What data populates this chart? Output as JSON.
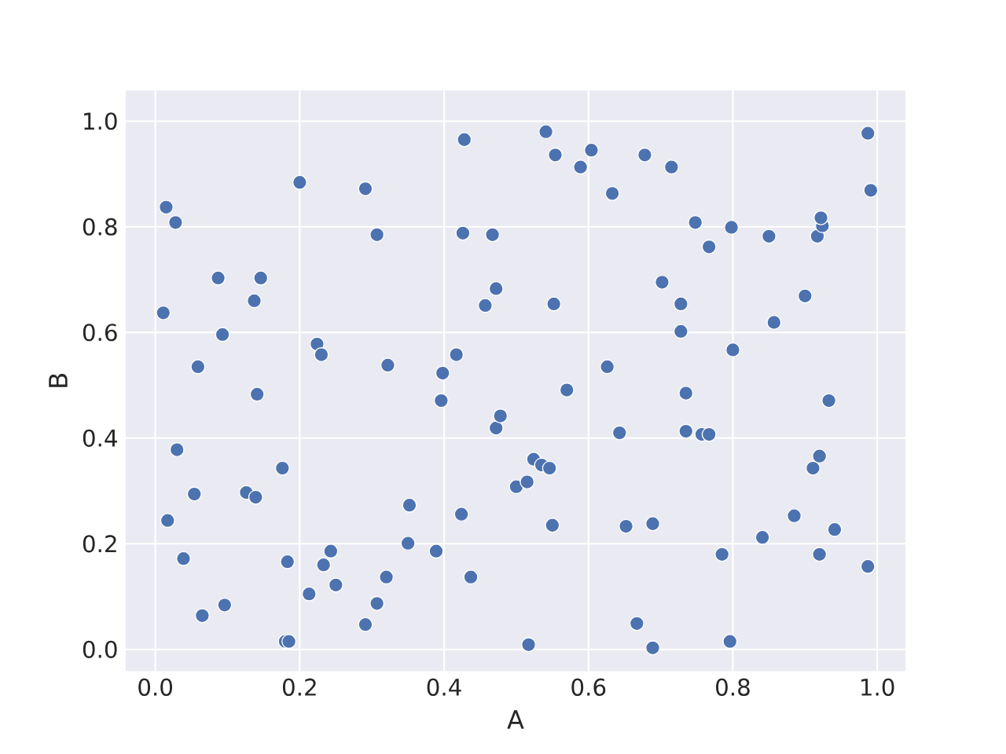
{
  "chart_data": {
    "type": "scatter",
    "xlabel": "A",
    "ylabel": "B",
    "x": [
      0.015,
      0.028,
      0.011,
      0.059,
      0.087,
      0.093,
      0.137,
      0.146,
      0.141,
      0.2,
      0.291,
      0.307,
      0.224,
      0.23,
      0.322,
      0.017,
      0.03,
      0.039,
      0.054,
      0.065,
      0.096,
      0.126,
      0.139,
      0.176,
      0.183,
      0.18,
      0.185,
      0.213,
      0.233,
      0.243,
      0.25,
      0.291,
      0.307,
      0.32,
      0.352,
      0.35,
      0.389,
      0.398,
      0.396,
      0.417,
      0.428,
      0.426,
      0.424,
      0.437,
      0.467,
      0.472,
      0.457,
      0.472,
      0.478,
      0.5,
      0.515,
      0.517,
      0.524,
      0.535,
      0.546,
      0.541,
      0.554,
      0.552,
      0.55,
      0.57,
      0.589,
      0.604,
      0.633,
      0.626,
      0.643,
      0.652,
      0.667,
      0.678,
      0.689,
      0.689,
      0.702,
      0.715,
      0.728,
      0.728,
      0.735,
      0.735,
      0.748,
      0.757,
      0.767,
      0.767,
      0.785,
      0.796,
      0.798,
      0.8,
      0.841,
      0.85,
      0.857,
      0.885,
      0.9,
      0.911,
      0.917,
      0.92,
      0.92,
      0.924,
      0.922,
      0.933,
      0.941,
      0.987,
      0.991,
      0.987
    ],
    "values": [
      0.837,
      0.808,
      0.637,
      0.535,
      0.703,
      0.596,
      0.66,
      0.703,
      0.483,
      0.884,
      0.872,
      0.785,
      0.578,
      0.558,
      0.538,
      0.244,
      0.378,
      0.172,
      0.294,
      0.064,
      0.084,
      0.297,
      0.288,
      0.343,
      0.166,
      0.015,
      0.015,
      0.105,
      0.16,
      0.186,
      0.122,
      0.047,
      0.087,
      0.137,
      0.273,
      0.201,
      0.186,
      0.523,
      0.471,
      0.558,
      0.965,
      0.788,
      0.256,
      0.137,
      0.785,
      0.683,
      0.651,
      0.419,
      0.442,
      0.308,
      0.317,
      0.009,
      0.36,
      0.349,
      0.343,
      0.98,
      0.936,
      0.654,
      0.235,
      0.491,
      0.913,
      0.945,
      0.863,
      0.535,
      0.41,
      0.233,
      0.049,
      0.936,
      0.238,
      0.003,
      0.695,
      0.913,
      0.654,
      0.602,
      0.485,
      0.413,
      0.808,
      0.407,
      0.407,
      0.762,
      0.18,
      0.015,
      0.799,
      0.567,
      0.212,
      0.782,
      0.619,
      0.253,
      0.669,
      0.343,
      0.782,
      0.366,
      0.18,
      0.802,
      0.817,
      0.471,
      0.227,
      0.977,
      0.869,
      0.157
    ],
    "color": "#4c72b0",
    "grid": true,
    "xlim": [
      -0.041,
      1.039
    ],
    "ylim": [
      -0.041,
      1.058
    ],
    "xticks": [
      {
        "value": 0,
        "label": "0.0"
      },
      {
        "value": 0.2,
        "label": "0.2"
      },
      {
        "value": 0.4,
        "label": "0.4"
      },
      {
        "value": 0.6,
        "label": "0.6"
      },
      {
        "value": 0.8,
        "label": "0.8"
      },
      {
        "value": 1,
        "label": "1.0"
      }
    ],
    "yticks": [
      {
        "value": 0,
        "label": "0.0"
      },
      {
        "value": 0.2,
        "label": "0.2"
      },
      {
        "value": 0.4,
        "label": "0.4"
      },
      {
        "value": 0.6,
        "label": "0.6"
      },
      {
        "value": 0.8,
        "label": "0.8"
      },
      {
        "value": 1,
        "label": "1.0"
      }
    ]
  }
}
